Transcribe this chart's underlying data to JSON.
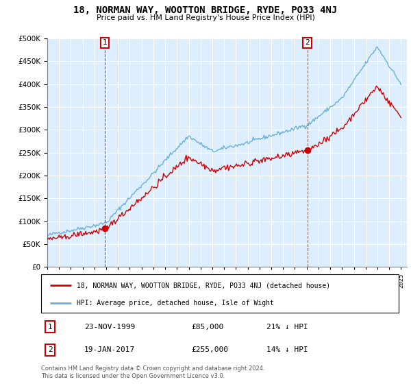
{
  "title": "18, NORMAN WAY, WOOTTON BRIDGE, RYDE, PO33 4NJ",
  "subtitle": "Price paid vs. HM Land Registry's House Price Index (HPI)",
  "legend_line1": "18, NORMAN WAY, WOOTTON BRIDGE, RYDE, PO33 4NJ (detached house)",
  "legend_line2": "HPI: Average price, detached house, Isle of Wight",
  "footnote": "Contains HM Land Registry data © Crown copyright and database right 2024.\nThis data is licensed under the Open Government Licence v3.0.",
  "sale1_date": "23-NOV-1999",
  "sale1_price": "£85,000",
  "sale1_hpi": "21% ↓ HPI",
  "sale2_date": "19-JAN-2017",
  "sale2_price": "£255,000",
  "sale2_hpi": "14% ↓ HPI",
  "hpi_color": "#6baed6",
  "sale_color": "#cc0000",
  "bg_color": "#ddeeff",
  "ylim": [
    0,
    500000
  ],
  "yticks": [
    0,
    50000,
    100000,
    150000,
    200000,
    250000,
    300000,
    350000,
    400000,
    450000,
    500000
  ],
  "sale1_x": 1999.9,
  "sale1_y": 85000,
  "sale2_x": 2017.05,
  "sale2_y": 255000,
  "xmin": 1995,
  "xmax": 2025.5
}
